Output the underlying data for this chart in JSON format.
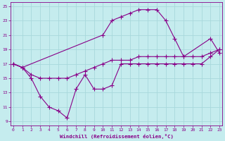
{
  "xlabel": "Windchill (Refroidissement éolien,°C)",
  "bg_color": "#c5ecee",
  "grid_color": "#a8d8db",
  "line_color": "#880088",
  "xlim": [
    -0.3,
    23.3
  ],
  "ylim": [
    8.5,
    25.5
  ],
  "yticks": [
    9,
    11,
    13,
    15,
    17,
    19,
    21,
    23,
    25
  ],
  "xticks": [
    0,
    1,
    2,
    3,
    4,
    5,
    6,
    7,
    8,
    9,
    10,
    11,
    12,
    13,
    14,
    15,
    16,
    17,
    18,
    19,
    20,
    21,
    22,
    23
  ],
  "line1_x": [
    0,
    1,
    2,
    3,
    4,
    5,
    6,
    7,
    8,
    9,
    10,
    11,
    12,
    13,
    14,
    15,
    16,
    17,
    18,
    19,
    20,
    21,
    22,
    23
  ],
  "line1_y": [
    17,
    16.5,
    15,
    12.5,
    11,
    10.5,
    9.5,
    13.5,
    15.5,
    13.5,
    13.5,
    14,
    17,
    17,
    17,
    17,
    17,
    17,
    17,
    17,
    17,
    17,
    18,
    19
  ],
  "line2_x": [
    0,
    1,
    10,
    11,
    12,
    13,
    14,
    15,
    16,
    17,
    18,
    19,
    22,
    23
  ],
  "line2_y": [
    17,
    16.5,
    21,
    23,
    23.5,
    24,
    24.5,
    24.5,
    24.5,
    23,
    20.5,
    18,
    20.5,
    18.5
  ],
  "line3_x": [
    0,
    1,
    2,
    3,
    4,
    5,
    6,
    7,
    8,
    9,
    10,
    11,
    12,
    13,
    14,
    15,
    16,
    17,
    18,
    19,
    20,
    21,
    22,
    23
  ],
  "line3_y": [
    17,
    16.5,
    15.5,
    15,
    15,
    15,
    15,
    15.5,
    16,
    16.5,
    17,
    17.5,
    17.5,
    17.5,
    18,
    18,
    18,
    18,
    18,
    18,
    18,
    18,
    18.5,
    19
  ]
}
